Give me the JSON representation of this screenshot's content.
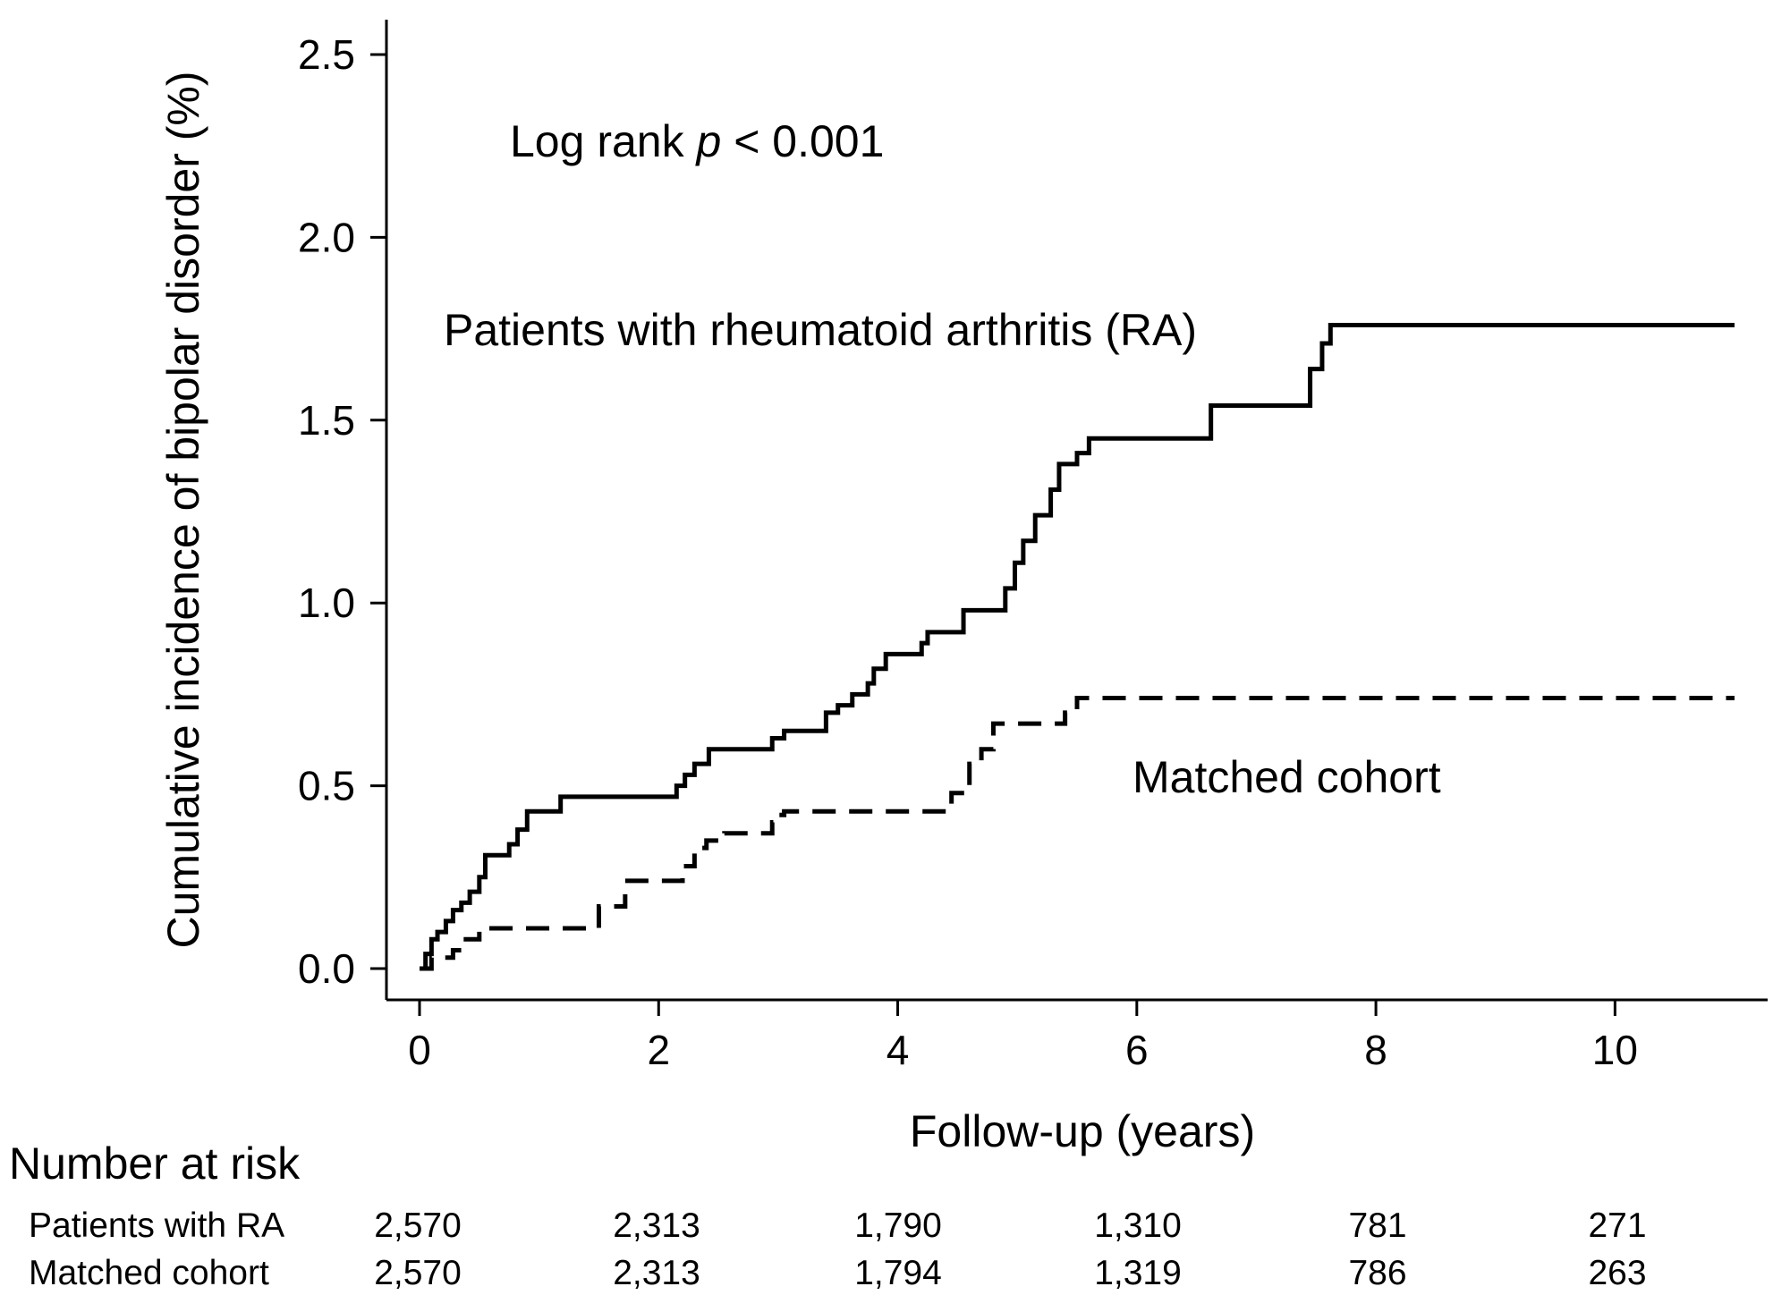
{
  "chart_data": {
    "type": "line",
    "step": true,
    "title": "",
    "xlabel": "Follow-up (years)",
    "ylabel": "Cumulative incidence of bipolar disorder (%)",
    "xlim": [
      0,
      11
    ],
    "ylim": [
      0,
      2.5
    ],
    "xticks": [
      0,
      2,
      4,
      6,
      8,
      10
    ],
    "xtick_labels": [
      "0",
      "2",
      "4",
      "6",
      "8",
      "10"
    ],
    "yticks": [
      0,
      0.5,
      1,
      1.5,
      2,
      2.5
    ],
    "ytick_labels": [
      "0.0",
      "0.5",
      "1.0",
      "1.5",
      "2.0",
      "2.5"
    ],
    "grid": false,
    "annotations": {
      "log_rank_prefix": "Log rank ",
      "log_rank_p": "p",
      "log_rank_suffix": " < 0.001",
      "ra_series_label": "Patients with rheumatoid arthritis (RA)",
      "matched_series_label": "Matched cohort"
    },
    "series": [
      {
        "name": "Patients with rheumatoid arthritis (RA)",
        "style": "solid",
        "color": "#000000",
        "x": [
          0,
          0.05,
          0.1,
          0.15,
          0.22,
          0.28,
          0.35,
          0.42,
          0.5,
          0.55,
          0.75,
          0.82,
          0.9,
          1.18,
          2.15,
          2.22,
          2.3,
          2.42,
          2.95,
          3.05,
          3.4,
          3.5,
          3.62,
          3.75,
          3.8,
          3.9,
          4.2,
          4.25,
          4.55,
          4.9,
          4.98,
          5.05,
          5.15,
          5.28,
          5.35,
          5.5,
          5.6,
          6.62,
          7.45,
          7.55,
          7.62,
          11.0
        ],
        "y": [
          0,
          0.04,
          0.08,
          0.1,
          0.13,
          0.16,
          0.18,
          0.21,
          0.25,
          0.31,
          0.34,
          0.38,
          0.43,
          0.47,
          0.5,
          0.53,
          0.56,
          0.6,
          0.63,
          0.65,
          0.7,
          0.72,
          0.75,
          0.78,
          0.82,
          0.86,
          0.89,
          0.92,
          0.98,
          1.04,
          1.11,
          1.17,
          1.24,
          1.31,
          1.38,
          1.41,
          1.45,
          1.54,
          1.64,
          1.71,
          1.76,
          1.76
        ]
      },
      {
        "name": "Matched cohort",
        "style": "dashed",
        "color": "#000000",
        "x": [
          0,
          0.1,
          0.28,
          0.35,
          0.5,
          1.5,
          1.72,
          2.2,
          2.3,
          2.4,
          2.55,
          2.95,
          3.0,
          3.05,
          4.45,
          4.6,
          4.7,
          4.8,
          4.9,
          5.4,
          5.5,
          11.0
        ],
        "y": [
          0,
          0.03,
          0.05,
          0.08,
          0.11,
          0.17,
          0.24,
          0.28,
          0.33,
          0.35,
          0.37,
          0.4,
          0.42,
          0.43,
          0.48,
          0.56,
          0.6,
          0.67,
          0.67,
          0.7,
          0.74,
          0.74
        ]
      }
    ]
  },
  "risk_table": {
    "title": "Number at risk",
    "rows": [
      {
        "label": "Patients with RA",
        "values": [
          "2,570",
          "2,313",
          "1,790",
          "1,310",
          "781",
          "271"
        ]
      },
      {
        "label": "Matched cohort",
        "values": [
          "2,570",
          "2,313",
          "1,794",
          "1,319",
          "786",
          "263"
        ]
      }
    ]
  }
}
